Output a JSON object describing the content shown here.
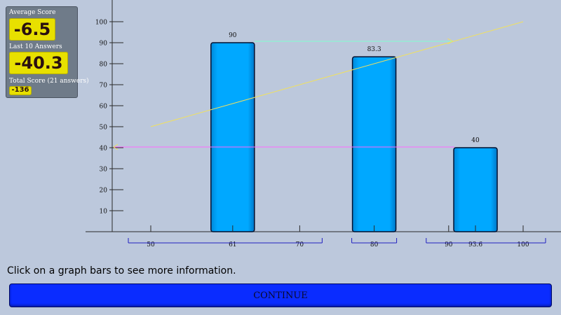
{
  "score_panel": {
    "average_label": "Average Score",
    "average_value": "-6.5",
    "last10_label": "Last 10 Answers",
    "last10_value": "-40.3",
    "total_label": "Total Score (21 answers)",
    "total_value": "-136"
  },
  "hint": "Click on a graph bars to see more information.",
  "continue_label": "CONTINUE",
  "chart_data": {
    "type": "bar",
    "y_ticks": [
      10,
      20,
      30,
      40,
      50,
      60,
      70,
      80,
      90,
      100
    ],
    "ylim": [
      0,
      110
    ],
    "bars": [
      {
        "x": 61,
        "value": 90,
        "label": "90"
      },
      {
        "x": 80,
        "value": 83.3,
        "label": "83.3"
      },
      {
        "x": 93.6,
        "value": 40,
        "label": "40"
      }
    ],
    "x_groups": [
      {
        "ticks": [
          {
            "x": 50,
            "label": "50"
          },
          {
            "x": 61,
            "label": "61"
          },
          {
            "x": 70,
            "label": "70"
          }
        ]
      },
      {
        "ticks": [
          {
            "x": 80,
            "label": "80"
          }
        ]
      },
      {
        "ticks": [
          {
            "x": 90,
            "label": "90"
          },
          {
            "x": 93.6,
            "label": "93.6"
          },
          {
            "x": 100,
            "label": "100"
          }
        ]
      }
    ],
    "colors": {
      "bar": "#00a8ff",
      "bar_edge": "#001030",
      "diagonal": "#f0e060",
      "horizontal": "#ff66ff",
      "horizontal_top": "#80ffd0"
    }
  }
}
